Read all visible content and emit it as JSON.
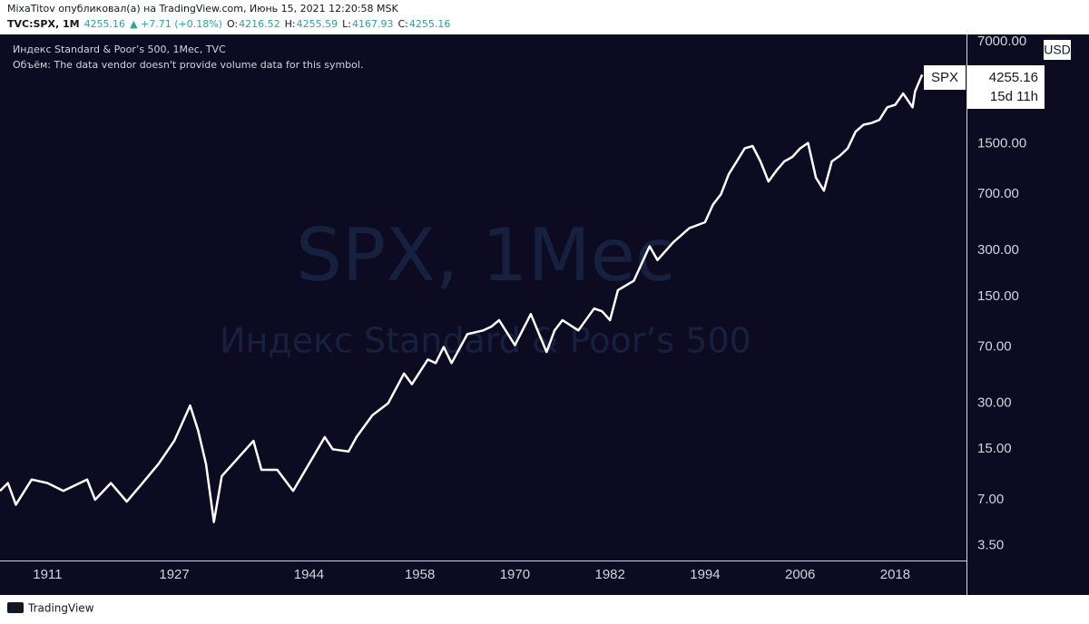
{
  "header": {
    "published": "MixaTitov опубликовал(а) на TradingView.com, Июнь 15, 2021 12:20:58 MSK",
    "symbol": "TVC:SPX, 1M",
    "last": "4255.16",
    "change": "▲ +7.71 (+0.18%)",
    "ohlc": [
      {
        "label": "O:",
        "value": "4216.52"
      },
      {
        "label": "H:",
        "value": "4255.59"
      },
      {
        "label": "L:",
        "value": "4167.93"
      },
      {
        "label": "C:",
        "value": "4255.16"
      }
    ]
  },
  "footer": {
    "brand": "TradingView"
  },
  "chart_data": {
    "type": "line",
    "legend_title": "Индекс Standard & Poor’s 500, 1Мес, TVC",
    "volume_note": "Объём: The data vendor doesn't provide volume data for this symbol.",
    "watermark": [
      "SPX, 1Мес",
      "Индекс Standard & Poor’s 500"
    ],
    "y_unit": "USD",
    "price_label": {
      "symbol": "SPX",
      "value": "4255.16",
      "countdown": "15d 11h"
    },
    "color": "#ffffff",
    "log_scale": true,
    "grid": false,
    "x": [
      1905,
      1906,
      1907,
      1909,
      1911,
      1913,
      1916,
      1917,
      1919,
      1921,
      1923,
      1925,
      1927,
      1929,
      1930,
      1931,
      1932,
      1933,
      1937,
      1938,
      1940,
      1942,
      1946,
      1947,
      1949,
      1950,
      1952,
      1954,
      1956,
      1957,
      1959,
      1960,
      1961,
      1962,
      1964,
      1966,
      1967,
      1968,
      1970,
      1972,
      1974,
      1975,
      1976,
      1978,
      1980,
      1981,
      1982,
      1983,
      1985,
      1987,
      1988,
      1990,
      1992,
      1994,
      1995,
      1996,
      1997,
      1998,
      1999,
      2000,
      2001,
      2002,
      2003,
      2004,
      2005,
      2006,
      2007,
      2008,
      2009,
      2010,
      2011,
      2012,
      2013,
      2014,
      2015,
      2016,
      2017,
      2018,
      2019,
      2020.2,
      2020.5,
      2021,
      2021.4
    ],
    "values": [
      8,
      9,
      6.5,
      9.5,
      9,
      8,
      9.5,
      7,
      9,
      6.8,
      9,
      12,
      17,
      29,
      20,
      12,
      5,
      10,
      17,
      11,
      11,
      8,
      18,
      15,
      14.5,
      18,
      25,
      30,
      47,
      40,
      58,
      55,
      70,
      55,
      85,
      90,
      95,
      105,
      72,
      115,
      65,
      90,
      105,
      90,
      125,
      120,
      105,
      165,
      190,
      320,
      260,
      340,
      420,
      460,
      600,
      700,
      950,
      1150,
      1400,
      1450,
      1150,
      850,
      1000,
      1150,
      1230,
      1400,
      1520,
      900,
      740,
      1150,
      1250,
      1400,
      1800,
      2000,
      2050,
      2150,
      2600,
      2700,
      3200,
      2600,
      3300,
      3800,
      4255.16
    ],
    "xlim": [
      1905,
      2027
    ],
    "xticks": [
      1911,
      1927,
      1944,
      1958,
      1970,
      1982,
      1994,
      2006,
      2018
    ],
    "ylim": [
      2.8,
      7800
    ],
    "yticks": [
      {
        "value": 3.5,
        "label": "3.50"
      },
      {
        "value": 7,
        "label": "7.00"
      },
      {
        "value": 15,
        "label": "15.00"
      },
      {
        "value": 30,
        "label": "30.00"
      },
      {
        "value": 70,
        "label": "70.00"
      },
      {
        "value": 150,
        "label": "150.00"
      },
      {
        "value": 300,
        "label": "300.00"
      },
      {
        "value": 700,
        "label": "700.00"
      },
      {
        "value": 1500,
        "label": "1500.00"
      },
      {
        "value": 7000,
        "label": "7000.00"
      }
    ]
  }
}
